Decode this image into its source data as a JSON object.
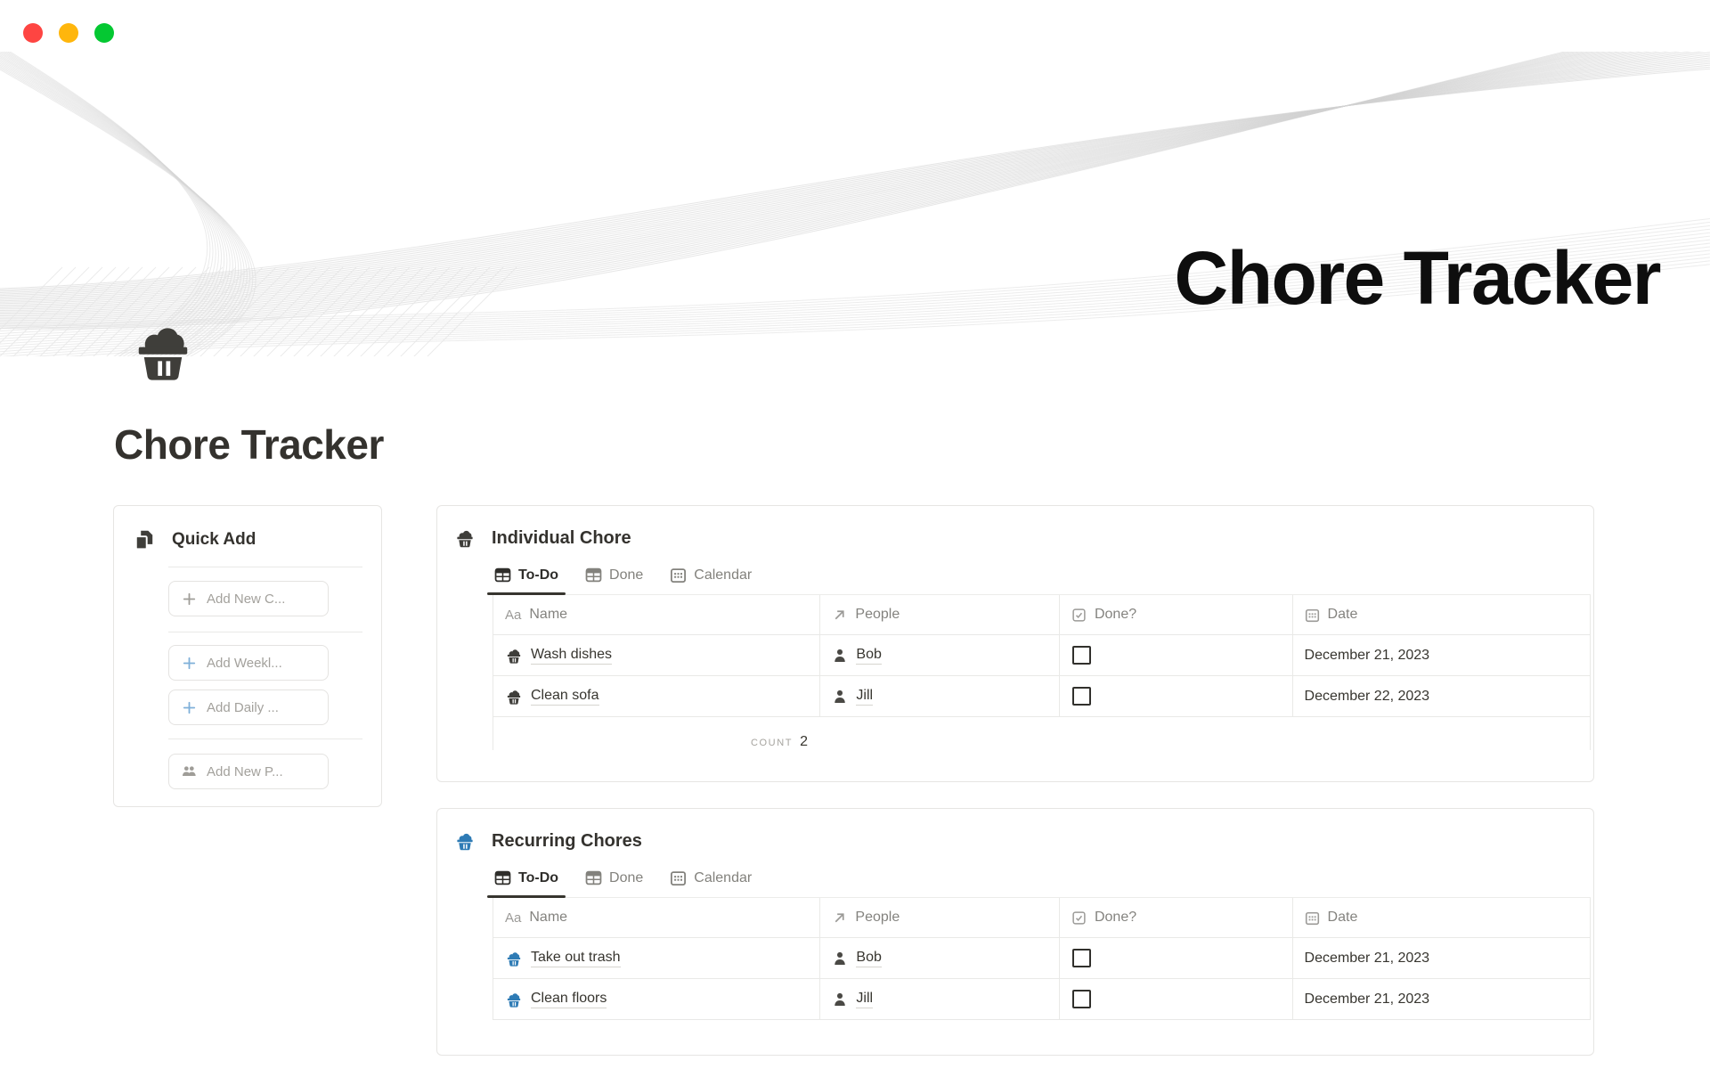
{
  "window": {
    "controls": [
      {
        "name": "close"
      },
      {
        "name": "minimize"
      },
      {
        "name": "zoom"
      }
    ]
  },
  "banner": {
    "title": "Chore Tracker"
  },
  "page": {
    "icon": "laundry-basket",
    "title": "Chore Tracker"
  },
  "quick_add": {
    "icon": "pages",
    "title": "Quick Add",
    "buttons": [
      {
        "label": "Add New C...",
        "icon": "plus",
        "accent": "gray"
      },
      {
        "label": "Add Weekl...",
        "icon": "plus",
        "accent": "blue"
      },
      {
        "label": "Add Daily ...",
        "icon": "plus",
        "accent": "blue"
      },
      {
        "label": "Add New P...",
        "icon": "people",
        "accent": "gray"
      }
    ]
  },
  "databases": [
    {
      "title": "Individual Chore",
      "icon": "laundry-basket",
      "accent": "#3f3e3a",
      "tabs": [
        {
          "label": "To-Do",
          "icon": "table",
          "active": true
        },
        {
          "label": "Done",
          "icon": "table",
          "active": false
        },
        {
          "label": "Calendar",
          "icon": "calendar",
          "active": false
        }
      ],
      "columns": [
        {
          "label": "Name",
          "icon": "text-type",
          "icon_label": "Aa"
        },
        {
          "label": "People",
          "icon": "arrow-up-right"
        },
        {
          "label": "Done?",
          "icon": "checkbox"
        },
        {
          "label": "Date",
          "icon": "calendar"
        }
      ],
      "rows": [
        {
          "name": "Wash dishes",
          "person": "Bob",
          "done": false,
          "date": "December 21, 2023"
        },
        {
          "name": "Clean sofa",
          "person": "Jill",
          "done": false,
          "date": "December 22, 2023"
        }
      ],
      "footer": {
        "label": "COUNT",
        "value": "2"
      }
    },
    {
      "title": "Recurring Chores",
      "icon": "laundry-basket",
      "accent": "#2e7bb5",
      "tabs": [
        {
          "label": "To-Do",
          "icon": "table",
          "active": true
        },
        {
          "label": "Done",
          "icon": "table",
          "active": false
        },
        {
          "label": "Calendar",
          "icon": "calendar",
          "active": false
        }
      ],
      "columns": [
        {
          "label": "Name",
          "icon": "text-type",
          "icon_label": "Aa"
        },
        {
          "label": "People",
          "icon": "arrow-up-right"
        },
        {
          "label": "Done?",
          "icon": "checkbox"
        },
        {
          "label": "Date",
          "icon": "calendar"
        }
      ],
      "rows": [
        {
          "name": "Take out trash",
          "person": "Bob",
          "done": false,
          "date": "December 21, 2023"
        },
        {
          "name": "Clean floors",
          "person": "Jill",
          "done": false,
          "date": "December 21, 2023"
        }
      ]
    }
  ],
  "colors": {
    "text": "#37352f",
    "muted": "#83827d",
    "border": "#e9e9e7",
    "accent_dark": "#3f3e3a",
    "accent_blue": "#2e7bb5",
    "plus_blue": "#7fb0d9",
    "traffic_red": "#fe4542",
    "traffic_yellow": "#ffb60c",
    "traffic_green": "#04c832"
  }
}
